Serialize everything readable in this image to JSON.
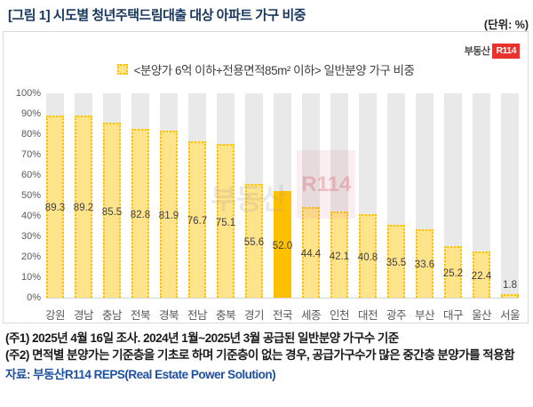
{
  "header": {
    "title": "[그림 1] 시도별 청년주택드림대출 대상 아파트 가구 비중",
    "unit": "(단위: %)"
  },
  "logo": {
    "prefix": "부동산",
    "badge": "R114"
  },
  "legend": {
    "label": "<분양가 6억 이하+전용면적85m² 이하> 일반분양 가구 비중"
  },
  "watermark": {
    "prefix": "부동산",
    "badge": "R114"
  },
  "chart_data": {
    "type": "bar",
    "title": "시도별 청년주택드림대출 대상 아파트 가구 비중",
    "categories": [
      "강원",
      "경남",
      "충남",
      "전북",
      "경북",
      "전남",
      "충북",
      "경기",
      "전국",
      "세종",
      "인천",
      "대전",
      "광주",
      "부산",
      "대구",
      "울산",
      "서울"
    ],
    "values": [
      89.3,
      89.2,
      85.5,
      82.8,
      81.9,
      76.7,
      75.1,
      55.6,
      52.0,
      44.4,
      42.1,
      40.8,
      35.5,
      33.6,
      25.2,
      22.4,
      1.8
    ],
    "highlight_index": 8,
    "highlight_category": "전국",
    "unit": "%",
    "ylim": [
      0,
      100
    ],
    "ytick_step": 10,
    "yticks": [
      "0%",
      "10%",
      "20%",
      "30%",
      "40%",
      "50%",
      "60%",
      "70%",
      "80%",
      "90%",
      "100%"
    ],
    "legend": "<분양가 6억 이하+전용면적85m² 이하> 일반분양 가구 비중",
    "label_position": "inside-center",
    "grid": false,
    "colors": {
      "bar_fill": "#FFE48C",
      "bar_border": "#FFC000",
      "highlight_fill": "#FFC000",
      "track": "#E9E9E9",
      "label_text": "#404040",
      "axis_text": "#595959",
      "title_text": "#17365D",
      "source_text": "#1D50A2",
      "brand_red": "#E8322E"
    }
  },
  "notes": {
    "note1": "(주1) 2025년 4월 16일 조사. 2024년 1월~2025년 3월 공급된 일반분양 가구수 기준",
    "note2": "(주2) 면적별 분양가는 기준층을 기초로 하며 기준층이 없는 경우, 공급가구수가 많은 중간층 분양가를 적용함",
    "source": "자료: 부동산R114 REPS(Real Estate Power Solution)"
  }
}
